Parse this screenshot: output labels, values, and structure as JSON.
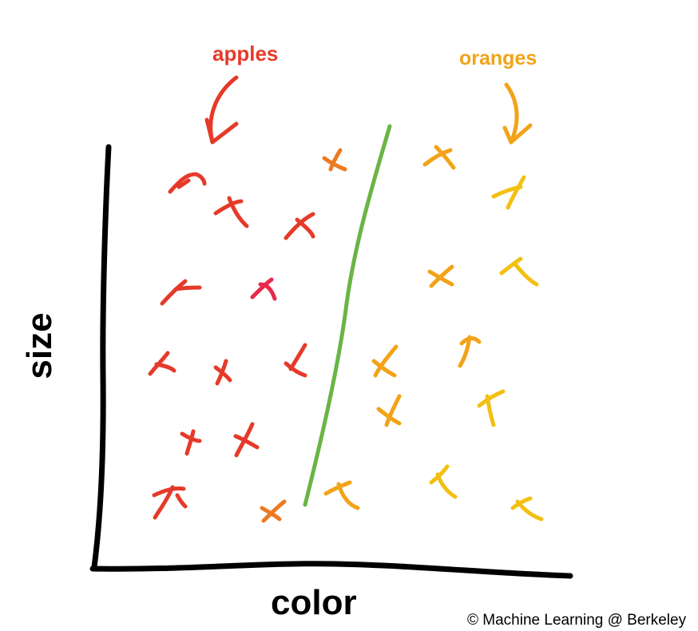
{
  "labels": {
    "apples": "apples",
    "oranges": "oranges",
    "x_axis": "color",
    "y_axis": "size",
    "copyright": "© Machine Learning @ Berkeley"
  },
  "colors": {
    "apple_red": "#e53a2a",
    "apple_pink": "#e8294a",
    "mid_orange": "#ec7a22",
    "orange": "#f2a318",
    "yellow": "#f2c012",
    "boundary_green": "#6ab545",
    "axis_black": "#000000"
  },
  "icons": {
    "marker": "hand-drawn-x-mark",
    "arrow": "curved-down-arrow"
  }
}
